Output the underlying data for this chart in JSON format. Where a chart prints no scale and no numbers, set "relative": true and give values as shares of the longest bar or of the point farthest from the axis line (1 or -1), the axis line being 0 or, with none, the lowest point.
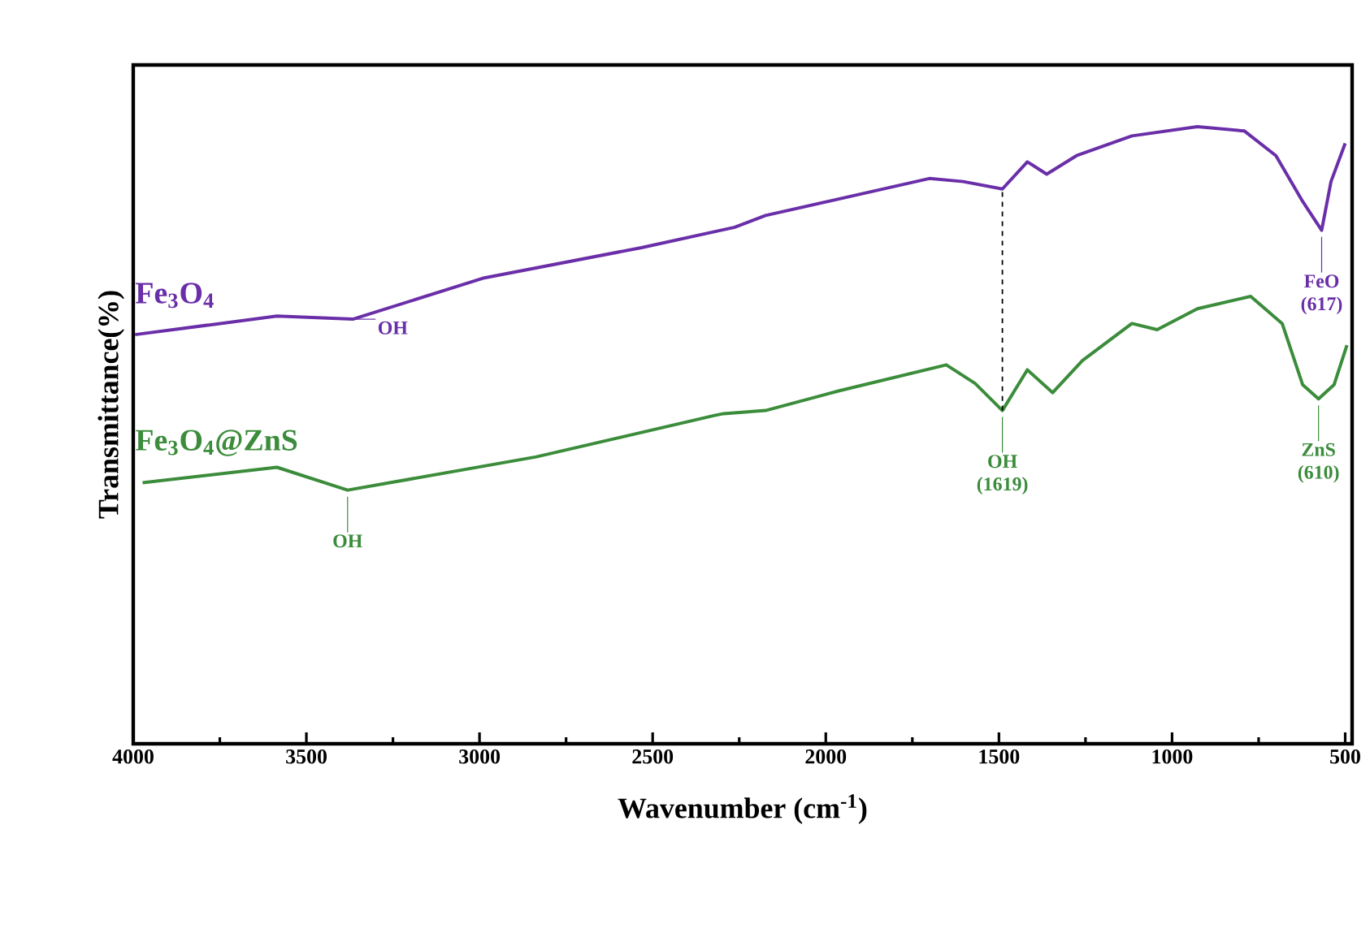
{
  "chart_data": {
    "type": "line",
    "relative": true,
    "xlabel": "Wavenumber (cm$^{-1}$)",
    "ylabel": "Transmittance(%)",
    "xlim": [
      4000,
      480
    ],
    "xticks": [
      4000,
      3500,
      3000,
      2500,
      2000,
      1500,
      1000,
      500
    ],
    "legend": false,
    "grid": false,
    "marker": "none",
    "line_style": "solid",
    "series": [
      {
        "name": "Fe$_{3}$O$_{4}$",
        "color": "#6a2fa8",
        "x": [
          3995,
          3585,
          3366,
          2986,
          2532,
          2263,
          2174,
          1701,
          1603,
          1490,
          1418,
          1362,
          1276,
          1116,
          927,
          791,
          700,
          623,
          568,
          541,
          500
        ],
        "values": [
          0.663,
          0.693,
          0.688,
          0.755,
          0.804,
          0.837,
          0.856,
          0.916,
          0.911,
          0.899,
          0.943,
          0.923,
          0.953,
          0.985,
          1.0,
          0.993,
          0.953,
          0.879,
          0.832,
          0.911,
          0.973
        ]
      },
      {
        "name": "Fe$_{3}$O$_{4}$@ZnS",
        "color": "#3b8c3b",
        "x": [
          3973,
          3585,
          3381,
          2836,
          2321,
          2295,
          2174,
          1961,
          1652,
          1569,
          1490,
          1418,
          1345,
          1259,
          1116,
          1043,
          927,
          773,
          682,
          623,
          577,
          532,
          495
        ],
        "values": [
          0.423,
          0.448,
          0.411,
          0.465,
          0.532,
          0.535,
          0.54,
          0.572,
          0.614,
          0.584,
          0.54,
          0.606,
          0.569,
          0.621,
          0.681,
          0.671,
          0.705,
          0.725,
          0.681,
          0.582,
          0.559,
          0.582,
          0.646
        ]
      }
    ],
    "annotations": [
      {
        "text": "OH",
        "x": 3366,
        "y": 0.688
      },
      {
        "text": "FeO (617)",
        "x": 568,
        "y": 0.832
      },
      {
        "text": "OH",
        "x": 3381,
        "y": 0.411
      },
      {
        "text": "OH (1619)",
        "x": 1490,
        "y": 0.54
      },
      {
        "text": "ZnS (610)",
        "x": 577,
        "y": 0.559
      }
    ]
  }
}
